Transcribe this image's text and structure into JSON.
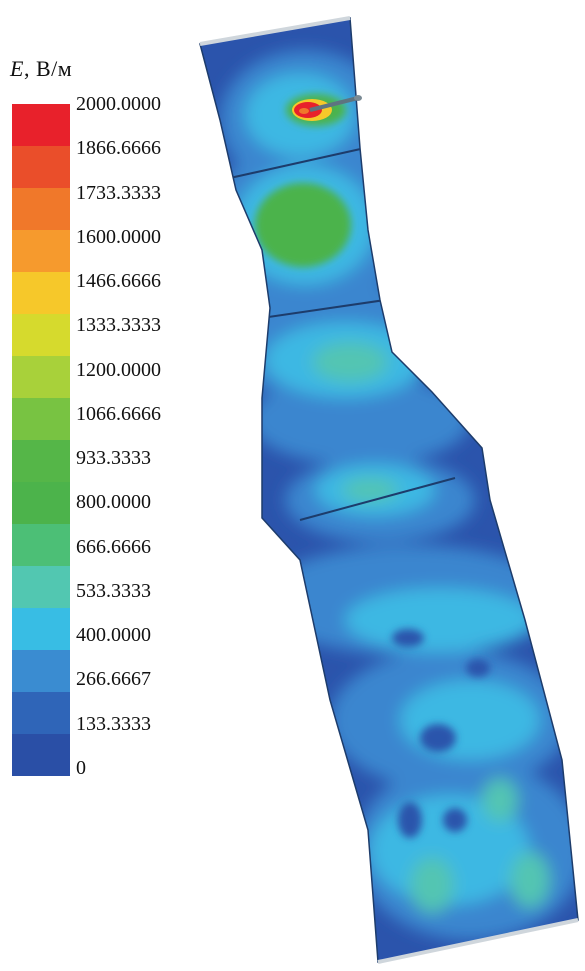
{
  "legend": {
    "title_symbol": "E",
    "title_unit": ", В/м",
    "labels": [
      "2000.0000",
      "1866.6666",
      "1733.3333",
      "1600.0000",
      "1466.6666",
      "1333.3333",
      "1200.0000",
      "1066.6666",
      "933.3333",
      "800.0000",
      "666.6666",
      "533.3333",
      "400.0000",
      "266.6667",
      "133.3333",
      "0"
    ],
    "colors": [
      "#e8212b",
      "#ea4e2a",
      "#f0782a",
      "#f69a2d",
      "#f6c82a",
      "#d6da2d",
      "#a8d13a",
      "#78c342",
      "#55b648",
      "#4cb34b",
      "#4cbf76",
      "#52c7b1",
      "#38bde4",
      "#3a8cd1",
      "#2f65b8",
      "#2a4fa6"
    ]
  },
  "field_colors": {
    "very_low": "#2b54ac",
    "low": "#3a86cf",
    "medium": "#3cb8e3",
    "medium_high": "#52c5b2",
    "high": "#4cb34b",
    "peak": "#e8212b"
  }
}
